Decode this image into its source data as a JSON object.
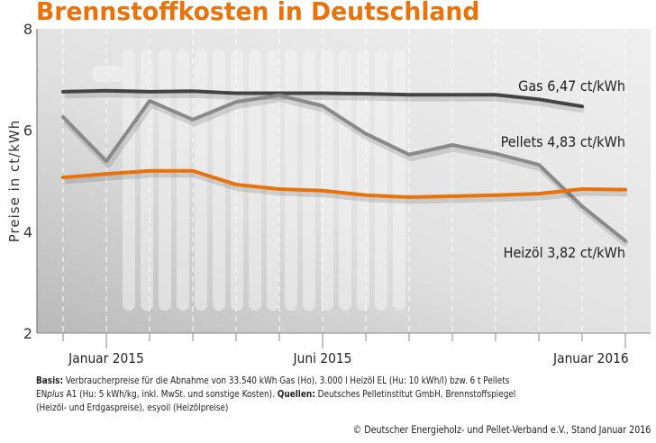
{
  "chart_data": {
    "type": "line",
    "title": "Brennstoffkosten in Deutschland",
    "ylabel": "Preise in ct/kWh",
    "ylim": [
      2,
      8
    ],
    "yticks": [
      "2",
      "4",
      "6",
      "8"
    ],
    "x": [
      "Dez 2014",
      "Jan 2015",
      "Feb 2015",
      "Mär 2015",
      "Apr 2015",
      "Mai 2015",
      "Jun 2015",
      "Jul 2015",
      "Aug 2015",
      "Sep 2015",
      "Okt 2015",
      "Nov 2015",
      "Dez 2015",
      "Jan 2016"
    ],
    "xtick_labels": [
      {
        "index": 1,
        "label": "Januar 2015"
      },
      {
        "index": 6,
        "label": "Juni 2015"
      },
      {
        "index": 13,
        "label": "Januar 2016"
      }
    ],
    "grid": "vertical dashed",
    "series": [
      {
        "name": "Gas",
        "label": "Gas  6,47 ct/kWh",
        "color": "#444444",
        "values": [
          6.76,
          6.78,
          6.76,
          6.77,
          6.73,
          6.73,
          6.73,
          6.72,
          6.7,
          6.7,
          6.7,
          6.61,
          6.47,
          null
        ]
      },
      {
        "name": "Heizöl",
        "label": "Heizöl 3,82 ct/kWh",
        "color": "#8a8a8a",
        "values": [
          6.26,
          5.39,
          6.58,
          6.21,
          6.56,
          6.69,
          6.48,
          5.93,
          5.52,
          5.71,
          5.54,
          5.32,
          4.5,
          3.82
        ]
      },
      {
        "name": "Pellets",
        "label": "Pellets  4,83 ct/kWh",
        "color": "#e8720c",
        "values": [
          5.07,
          5.14,
          5.2,
          5.2,
          4.93,
          4.84,
          4.81,
          4.72,
          4.68,
          4.7,
          4.72,
          4.75,
          4.84,
          4.83
        ]
      }
    ]
  },
  "notes": {
    "basis_label": "Basis:",
    "basis_text": " Verbraucherpreise für die Abnahme von 33.540 kWh Gas (Ho), 3.000 l Heizöl EL (Hu: 10 kWh/l) bzw. 6 t Pellets ",
    "enplus_a": "EN",
    "enplus_b": "plus",
    "basis_text2": " A1 (Hu: 5 kWh/kg, inkl. MwSt. und sonstige Kosten). ",
    "sources_label": "Quellen:",
    "sources_text": " Deutsches Pelletinstitut GmbH, Brennstoffspiegel",
    "sources_text2": "(Heizöl- und Erdgaspreise), esyoil (Heizölpreise)"
  },
  "copyright": "© Deutscher Energieholz- und Pellet-Verband e.V., Stand Januar 2016"
}
